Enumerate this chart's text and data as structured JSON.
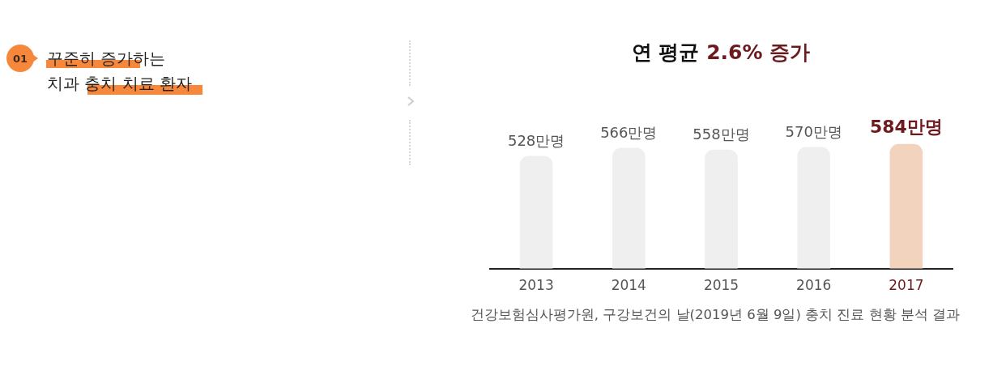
{
  "chart_data": {
    "type": "bar",
    "title": "연 평균 2.6% 증가",
    "categories": [
      "2013",
      "2014",
      "2015",
      "2016",
      "2017"
    ],
    "values": [
      528,
      566,
      558,
      570,
      584
    ],
    "colors": [
      "#efefef",
      "#efefef",
      "#efefef",
      "#efefef",
      "#f2d4be"
    ],
    "value_labels": [
      "528만명",
      "566만명",
      "558만명",
      "570만명",
      "584만명"
    ],
    "tick_labels": "x",
    "annotations": [
      "01",
      "꾸준히 증가하는\n치과 충치 치료 환자",
      "건강보험심사평가원, 구강보건의 날(2019년 6월 9일) 충치 진료 현황 분석 결과"
    ]
  }
}
